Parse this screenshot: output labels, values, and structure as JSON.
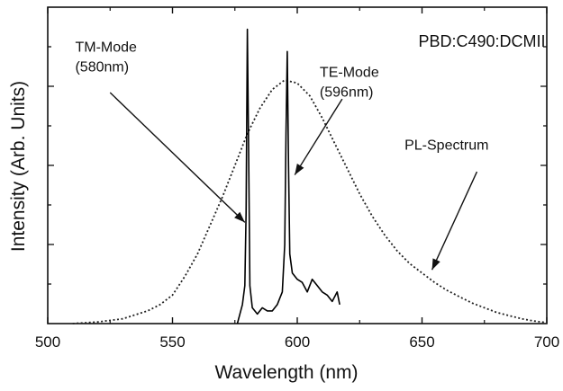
{
  "chart_data": {
    "type": "line",
    "title": "",
    "xlabel": "Wavelength (nm)",
    "ylabel": "Intensity (Arb. Units)",
    "xlim": [
      500,
      700
    ],
    "ylim": [
      0,
      1.0
    ],
    "x_ticks": [
      500,
      550,
      600,
      650,
      700
    ],
    "x_tick_labels": [
      "500",
      "550",
      "600",
      "650",
      "700"
    ],
    "y_tick_labels_shown": false,
    "grid": false,
    "sample_label": "PBD:C490:DCMII",
    "series": [
      {
        "key": "pl",
        "style": "dotted",
        "color": "#222222",
        "x": [
          510,
          520,
          530,
          540,
          545,
          550,
          555,
          560,
          565,
          570,
          575,
          580,
          585,
          590,
          595,
          600,
          605,
          610,
          615,
          620,
          625,
          630,
          635,
          640,
          645,
          650,
          655,
          660,
          665,
          670,
          675,
          680,
          685,
          690,
          695,
          700
        ],
        "y": [
          0.0,
          0.005,
          0.015,
          0.04,
          0.06,
          0.09,
          0.15,
          0.22,
          0.31,
          0.4,
          0.5,
          0.6,
          0.68,
          0.74,
          0.77,
          0.76,
          0.72,
          0.65,
          0.57,
          0.49,
          0.41,
          0.34,
          0.28,
          0.23,
          0.19,
          0.16,
          0.13,
          0.105,
          0.085,
          0.065,
          0.05,
          0.035,
          0.025,
          0.015,
          0.008,
          0.003
        ]
      },
      {
        "key": "modes",
        "style": "solid",
        "color": "#000000",
        "x": [
          576,
          577,
          578,
          579,
          579.5,
          580,
          580.5,
          581,
          582,
          584,
          586,
          588,
          590,
          592,
          593,
          594,
          595,
          595.5,
          596,
          596.5,
          597,
          598,
          600,
          602,
          604,
          606,
          608,
          610,
          612,
          614,
          616,
          617
        ],
        "y": [
          0.0,
          0.03,
          0.06,
          0.12,
          0.35,
          0.93,
          0.55,
          0.12,
          0.05,
          0.03,
          0.05,
          0.04,
          0.04,
          0.06,
          0.08,
          0.1,
          0.25,
          0.6,
          0.86,
          0.5,
          0.22,
          0.16,
          0.14,
          0.13,
          0.1,
          0.14,
          0.12,
          0.1,
          0.09,
          0.07,
          0.1,
          0.06
        ]
      }
    ],
    "annotations": [
      {
        "key": "tm",
        "lines": [
          "TM-Mode",
          "(580nm)"
        ],
        "text_x": 511,
        "text_y": 0.86,
        "arrow_from": [
          525,
          0.73
        ],
        "arrow_to": [
          579,
          0.32
        ]
      },
      {
        "key": "te",
        "lines": [
          "TE-Mode",
          "(596nm)"
        ],
        "text_x": 609,
        "text_y": 0.78,
        "arrow_from": [
          618,
          0.71
        ],
        "arrow_to": [
          599,
          0.47
        ]
      },
      {
        "key": "pl",
        "lines": [
          "PL-Spectrum"
        ],
        "text_x": 643,
        "text_y": 0.55,
        "arrow_from": [
          672,
          0.48
        ],
        "arrow_to": [
          654,
          0.17
        ]
      }
    ]
  }
}
